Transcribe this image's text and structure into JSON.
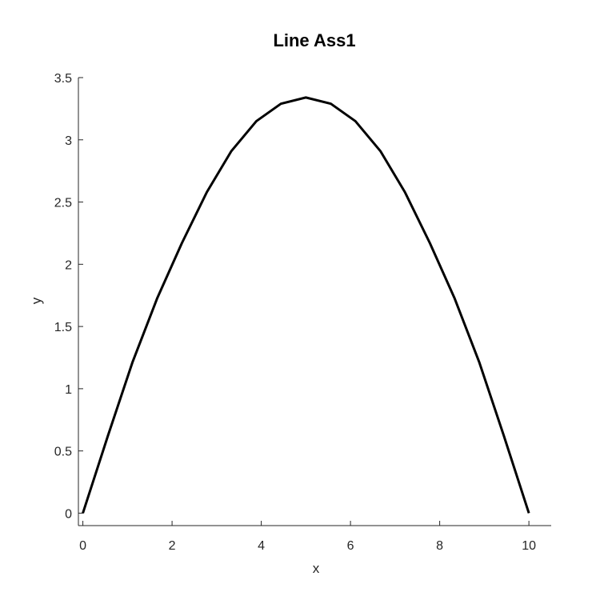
{
  "chart_data": {
    "type": "line",
    "title": "Line Ass1",
    "xlabel": "x",
    "ylabel": "y",
    "xlim": [
      -0.1,
      10.5
    ],
    "ylim": [
      -0.1,
      3.5
    ],
    "x_ticks": [
      0,
      2,
      4,
      6,
      8,
      10
    ],
    "x_tick_labels": [
      "0",
      "2",
      "4",
      "6",
      "8",
      "10"
    ],
    "y_ticks": [
      0,
      0.5,
      1,
      1.5,
      2,
      2.5,
      3,
      3.5
    ],
    "y_tick_labels": [
      "0",
      "0.5",
      "1",
      "1.5",
      "2",
      "2.5",
      "3",
      "3.5"
    ],
    "grid": false,
    "legend": "none",
    "line_color": "#000000",
    "axis_color": "#262626",
    "series": [
      {
        "x": [
          0,
          0.56,
          1.11,
          1.67,
          2.22,
          2.78,
          3.33,
          3.89,
          4.44,
          5.0,
          5.56,
          6.11,
          6.67,
          7.22,
          7.78,
          8.33,
          8.89,
          9.44,
          10.0
        ],
        "y": [
          0,
          0.62,
          1.21,
          1.73,
          2.17,
          2.58,
          2.91,
          3.15,
          3.29,
          3.34,
          3.29,
          3.15,
          2.91,
          2.58,
          2.17,
          1.73,
          1.21,
          0.62,
          0
        ]
      }
    ]
  }
}
